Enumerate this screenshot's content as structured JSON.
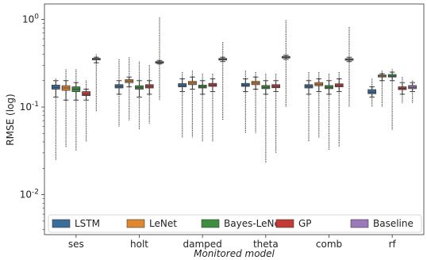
{
  "chart_data": {
    "type": "box",
    "xlabel": "Monitored model",
    "ylabel": "RMSE (log)",
    "yscale": "log",
    "ylim": [
      0.0035,
      1.5
    ],
    "yticks": [
      {
        "value": 1,
        "label": "10^0"
      },
      {
        "value": 0.1,
        "label": "10^-1"
      },
      {
        "value": 0.01,
        "label": "10^-2"
      }
    ],
    "categories": [
      "ses",
      "holt",
      "damped",
      "theta",
      "comb",
      "rf"
    ],
    "legend_position": "bottom",
    "series": [
      {
        "name": "LSTM",
        "color": "#3a6d9a"
      },
      {
        "name": "LeNet",
        "color": "#e0862e"
      },
      {
        "name": "Bayes-LeNet",
        "color": "#3c8f3c"
      },
      {
        "name": "GP",
        "color": "#c23b35"
      },
      {
        "name": "Baseline",
        "color": "#9b79bb"
      }
    ],
    "boxes": [
      [
        {
          "min": 0.13,
          "q1": 0.16,
          "median": 0.168,
          "q3": 0.178,
          "max": 0.2,
          "out_lo": 0.025,
          "out_hi": 0.21
        },
        {
          "min": 0.12,
          "q1": 0.155,
          "median": 0.165,
          "q3": 0.175,
          "max": 0.2,
          "out_lo": 0.035,
          "out_hi": 0.27
        },
        {
          "min": 0.12,
          "q1": 0.15,
          "median": 0.16,
          "q3": 0.17,
          "max": 0.19,
          "out_lo": 0.032,
          "out_hi": 0.27
        },
        {
          "min": 0.12,
          "q1": 0.135,
          "median": 0.14,
          "q3": 0.15,
          "max": 0.16,
          "out_lo": 0.04,
          "out_hi": 0.2
        },
        {
          "min": 0.32,
          "q1": 0.345,
          "median": 0.35,
          "q3": 0.36,
          "max": 0.37,
          "out_lo": 0.09,
          "out_hi": 0.4
        }
      ],
      [
        {
          "min": 0.14,
          "q1": 0.165,
          "median": 0.172,
          "q3": 0.18,
          "max": 0.2,
          "out_lo": 0.06,
          "out_hi": 0.35
        },
        {
          "min": 0.17,
          "q1": 0.19,
          "median": 0.198,
          "q3": 0.205,
          "max": 0.22,
          "out_lo": 0.07,
          "out_hi": 0.37
        },
        {
          "min": 0.13,
          "q1": 0.16,
          "median": 0.166,
          "q3": 0.175,
          "max": 0.2,
          "out_lo": 0.055,
          "out_hi": 0.33
        },
        {
          "min": 0.14,
          "q1": 0.165,
          "median": 0.172,
          "q3": 0.18,
          "max": 0.2,
          "out_lo": 0.065,
          "out_hi": 0.3
        },
        {
          "min": 0.31,
          "q1": 0.32,
          "median": 0.325,
          "q3": 0.33,
          "max": 0.34,
          "out_lo": 0.12,
          "out_hi": 1.05
        }
      ],
      [
        {
          "min": 0.15,
          "q1": 0.17,
          "median": 0.176,
          "q3": 0.185,
          "max": 0.21,
          "out_lo": 0.045,
          "out_hi": 0.25
        },
        {
          "min": 0.16,
          "q1": 0.18,
          "median": 0.188,
          "q3": 0.196,
          "max": 0.22,
          "out_lo": 0.045,
          "out_hi": 0.26
        },
        {
          "min": 0.14,
          "q1": 0.165,
          "median": 0.17,
          "q3": 0.178,
          "max": 0.2,
          "out_lo": 0.04,
          "out_hi": 0.24
        },
        {
          "min": 0.15,
          "q1": 0.172,
          "median": 0.178,
          "q3": 0.186,
          "max": 0.21,
          "out_lo": 0.04,
          "out_hi": 0.24
        },
        {
          "min": 0.33,
          "q1": 0.345,
          "median": 0.35,
          "q3": 0.358,
          "max": 0.37,
          "out_lo": 0.07,
          "out_hi": 0.55
        }
      ],
      [
        {
          "min": 0.15,
          "q1": 0.172,
          "median": 0.178,
          "q3": 0.186,
          "max": 0.21,
          "out_lo": 0.05,
          "out_hi": 0.26
        },
        {
          "min": 0.16,
          "q1": 0.18,
          "median": 0.188,
          "q3": 0.196,
          "max": 0.22,
          "out_lo": 0.05,
          "out_hi": 0.25
        },
        {
          "min": 0.14,
          "q1": 0.162,
          "median": 0.168,
          "q3": 0.176,
          "max": 0.2,
          "out_lo": 0.023,
          "out_hi": 0.24
        },
        {
          "min": 0.15,
          "q1": 0.166,
          "median": 0.172,
          "q3": 0.18,
          "max": 0.2,
          "out_lo": 0.03,
          "out_hi": 0.24
        },
        {
          "min": 0.35,
          "q1": 0.365,
          "median": 0.37,
          "q3": 0.378,
          "max": 0.39,
          "out_lo": 0.1,
          "out_hi": 0.98
        }
      ],
      [
        {
          "min": 0.14,
          "q1": 0.165,
          "median": 0.172,
          "q3": 0.18,
          "max": 0.2,
          "out_lo": 0.04,
          "out_hi": 0.25
        },
        {
          "min": 0.15,
          "q1": 0.175,
          "median": 0.182,
          "q3": 0.19,
          "max": 0.21,
          "out_lo": 0.045,
          "out_hi": 0.25
        },
        {
          "min": 0.14,
          "q1": 0.162,
          "median": 0.168,
          "q3": 0.176,
          "max": 0.2,
          "out_lo": 0.032,
          "out_hi": 0.24
        },
        {
          "min": 0.15,
          "q1": 0.17,
          "median": 0.176,
          "q3": 0.184,
          "max": 0.21,
          "out_lo": 0.035,
          "out_hi": 0.25
        },
        {
          "min": 0.33,
          "q1": 0.345,
          "median": 0.35,
          "q3": 0.356,
          "max": 0.37,
          "out_lo": 0.1,
          "out_hi": 0.82
        }
      ],
      [
        {
          "min": 0.13,
          "q1": 0.142,
          "median": 0.148,
          "q3": 0.158,
          "max": 0.17,
          "out_lo": 0.1,
          "out_hi": 0.21
        },
        {
          "min": 0.2,
          "q1": 0.22,
          "median": 0.226,
          "q3": 0.232,
          "max": 0.24,
          "out_lo": 0.1,
          "out_hi": 0.26
        },
        {
          "min": 0.2,
          "q1": 0.22,
          "median": 0.225,
          "q3": 0.235,
          "max": 0.25,
          "out_lo": 0.055,
          "out_hi": 0.27
        },
        {
          "min": 0.14,
          "q1": 0.158,
          "median": 0.163,
          "q3": 0.17,
          "max": 0.19,
          "out_lo": 0.11,
          "out_hi": 0.22
        },
        {
          "min": 0.15,
          "q1": 0.162,
          "median": 0.168,
          "q3": 0.176,
          "max": 0.19,
          "out_lo": 0.11,
          "out_hi": 0.2
        }
      ]
    ]
  }
}
